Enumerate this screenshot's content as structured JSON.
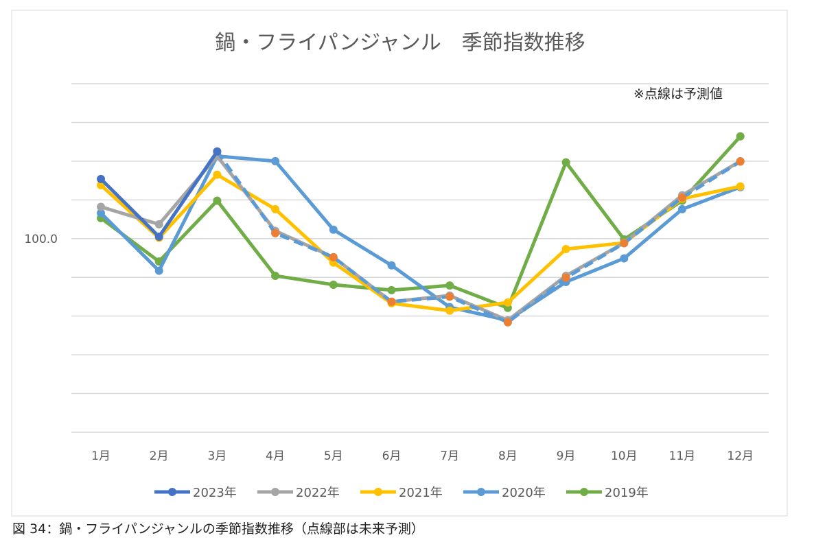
{
  "caption": "図 34：鍋・フライパンジャンルの季節指数推移（点線部は未来予測）",
  "chart_data": {
    "type": "line",
    "title": "鍋・フライパンジャンル　季節指数推移",
    "annotation": "※点線は予測値",
    "categories": [
      "1月",
      "2月",
      "3月",
      "4月",
      "5月",
      "6月",
      "7月",
      "8月",
      "9月",
      "10月",
      "11月",
      "12月"
    ],
    "ylim": [
      50,
      140
    ],
    "y_tick_labels": [
      {
        "value": 100,
        "label": "100.0"
      }
    ],
    "grid": true,
    "legend_position": "bottom",
    "series": [
      {
        "name": "2023年",
        "color": "#4472c4",
        "values": [
          115.4,
          100.5,
          122.5,
          null,
          null,
          null,
          null,
          null,
          null,
          null,
          null,
          null
        ]
      },
      {
        "color": "#5b9bd5",
        "marker_color": "#ed7d31",
        "dashed": true,
        "values": [
          null,
          null,
          122.5,
          101.4,
          95.2,
          83.7,
          85.0,
          78.4,
          89.9,
          98.8,
          110.6,
          119.9
        ]
      },
      {
        "name": "2022年",
        "color": "#a5a5a5",
        "values": [
          108.2,
          103.7,
          121.3,
          102.0,
          95.2,
          83.7,
          85.3,
          78.9,
          90.4,
          98.9,
          111.2,
          120.0
        ]
      },
      {
        "name": "2021年",
        "color": "#ffc000",
        "values": [
          113.8,
          100.2,
          116.5,
          107.6,
          93.8,
          83.3,
          81.4,
          83.5,
          97.3,
          98.9,
          110.3,
          113.5
        ]
      },
      {
        "name": "2020年",
        "color": "#5b9bd5",
        "values": [
          106.6,
          91.7,
          121.3,
          120.0,
          102.3,
          93.1,
          82.3,
          78.9,
          88.8,
          94.9,
          107.6,
          113.3
        ]
      },
      {
        "name": "2019年",
        "color": "#70ad47",
        "values": [
          105.3,
          94.1,
          109.8,
          90.4,
          88.1,
          86.7,
          87.9,
          82.1,
          119.7,
          99.8,
          109.8,
          126.4
        ]
      }
    ]
  }
}
